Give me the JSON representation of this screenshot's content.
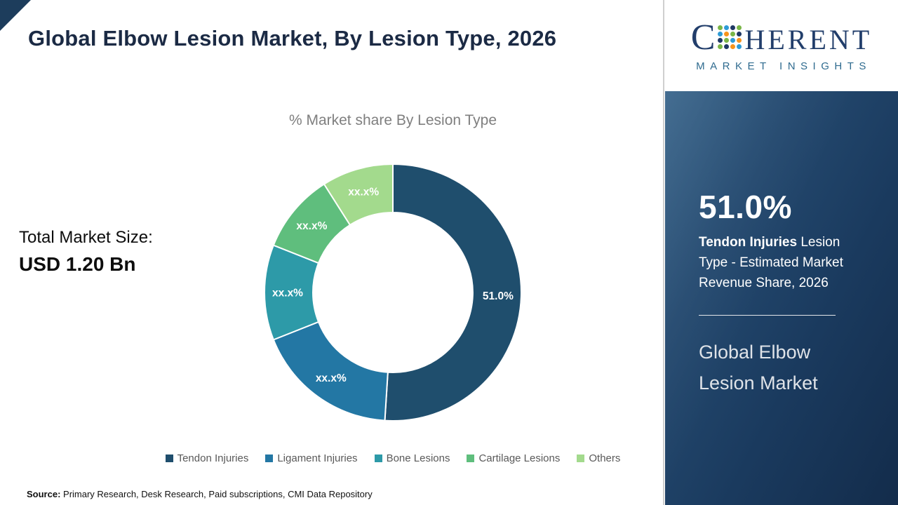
{
  "header": {
    "title": "Global Elbow Lesion Market, By Lesion Type, 2026"
  },
  "chart": {
    "subtitle": "% Market share By Lesion Type",
    "total_label": "Total Market Size:",
    "total_value": "USD 1.20 Bn"
  },
  "chart_data": {
    "type": "pie",
    "donut": true,
    "title": "% Market share By Lesion Type",
    "categories": [
      "Tendon Injuries",
      "Ligament Injuries",
      "Bone Lesions",
      "Cartilage Lesions",
      "Others"
    ],
    "values": [
      51.0,
      18.0,
      12.0,
      10.0,
      9.0
    ],
    "slice_labels": [
      "51.0%",
      "xx.x%",
      "xx.x%",
      "xx.x%",
      "xx.x%"
    ],
    "colors": [
      "#1f4e6d",
      "#2377a4",
      "#2d9aa8",
      "#5fbe7d",
      "#a3da8d"
    ],
    "legend_position": "bottom",
    "start_angle": "top",
    "direction": "clockwise"
  },
  "source": {
    "label": "Source:",
    "text": " Primary Research, Desk Research, Paid subscriptions, CMI Data Repository"
  },
  "sidebar": {
    "logo": {
      "c": "C",
      "rest": "HERENT",
      "tagline": "MARKET INSIGHTS",
      "dot_colors": [
        "#7ab648",
        "#2e9bd6",
        "#1f3864",
        "#7ab648",
        "#2e9bd6",
        "#f7941d",
        "#7ab648",
        "#1f3864",
        "#1f3864",
        "#7ab648",
        "#2e9bd6",
        "#f7941d",
        "#7ab648",
        "#1f3864",
        "#f7941d",
        "#2e9bd6"
      ]
    },
    "stat_value": "51.0%",
    "stat_bold": "Tendon Injuries",
    "stat_rest": " Lesion Type - Estimated Market Revenue Share, 2026",
    "market_name": "Global Elbow Lesion Market"
  }
}
